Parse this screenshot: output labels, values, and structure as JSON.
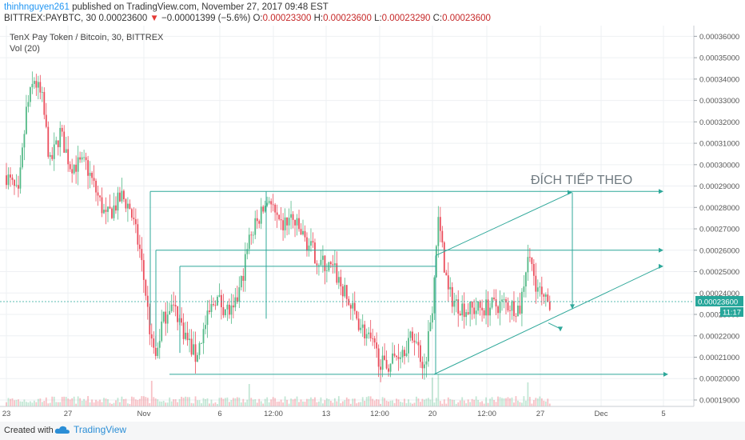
{
  "header": {
    "author": "thinhnguyen261",
    "published": "published on TradingView.com, November 27, 2017 09:48 EST",
    "symbol": "BITTREX:PAYBTC, 30",
    "last": "0.00023600",
    "change": "−0.00001399 (−5.6%)",
    "o_label": "O:",
    "o": "0.00023300",
    "h_label": "H:",
    "h": "0.00023600",
    "l_label": "L:",
    "l": "0.00023290",
    "c_label": "C:",
    "c": "0.00023600"
  },
  "legend": {
    "title": "TenX Pay Token / Bitcoin, 30, BITTREX",
    "volume": "Vol (20)"
  },
  "footer": {
    "created_with": "Created with",
    "brand": "TradingView"
  },
  "colors": {
    "up": "#53b987",
    "down": "#eb4d5c",
    "drawing": "#2fa89a",
    "price_badge": "#26a69a",
    "annotation": "#6f7a80",
    "grid": "#eef0f3"
  },
  "chart_data": {
    "type": "candlestick",
    "annotation": "ĐÍCH TIẾP THEO",
    "current_price_label": "0.00023600",
    "countdown": "11:17",
    "y_ticks": [
      "0.00036000",
      "0.00035000",
      "0.00034000",
      "0.00033000",
      "0.00032000",
      "0.00031000",
      "0.00030000",
      "0.00029000",
      "0.00028000",
      "0.00027000",
      "0.00026000",
      "0.00025000",
      "0.00024000",
      "0.00023000",
      "0.00022000",
      "0.00021000",
      "0.00020000",
      "0.00019000"
    ],
    "ylim": [
      0.000187,
      0.000365
    ],
    "x_ticks": [
      "23",
      "27",
      "Nov",
      "6",
      "12:00",
      "13",
      "12:00",
      "20",
      "12:00",
      "27",
      "Dec",
      "5"
    ],
    "anchors": [
      [
        0,
        0.000295
      ],
      [
        6,
        0.000285
      ],
      [
        10,
        0.000325
      ],
      [
        14,
        0.00034
      ],
      [
        18,
        0.00033
      ],
      [
        22,
        0.0003
      ],
      [
        27,
        0.000315
      ],
      [
        32,
        0.0003
      ],
      [
        40,
        0.0003
      ],
      [
        46,
        0.000285
      ],
      [
        50,
        0.000275
      ],
      [
        54,
        0.00028
      ],
      [
        58,
        0.000285
      ],
      [
        62,
        0.00028
      ],
      [
        67,
        0.00026
      ],
      [
        70,
        0.00024
      ],
      [
        73,
        0.000215
      ],
      [
        75,
        0.00021
      ],
      [
        78,
        0.000225
      ],
      [
        82,
        0.000235
      ],
      [
        86,
        0.00023
      ],
      [
        90,
        0.00022
      ],
      [
        95,
        0.00021
      ],
      [
        100,
        0.000225
      ],
      [
        105,
        0.000238
      ],
      [
        110,
        0.000233
      ],
      [
        114,
        0.00023
      ],
      [
        118,
        0.000245
      ],
      [
        122,
        0.000265
      ],
      [
        127,
        0.000275
      ],
      [
        132,
        0.000285
      ],
      [
        137,
        0.00027
      ],
      [
        143,
        0.000275
      ],
      [
        150,
        0.000265
      ],
      [
        157,
        0.000255
      ],
      [
        165,
        0.00025
      ],
      [
        172,
        0.000235
      ],
      [
        178,
        0.000225
      ],
      [
        184,
        0.000215
      ],
      [
        190,
        0.000205
      ],
      [
        195,
        0.00021
      ],
      [
        200,
        0.000215
      ],
      [
        205,
        0.00022
      ],
      [
        210,
        0.000205
      ],
      [
        214,
        0.000235
      ],
      [
        217,
        0.000275
      ],
      [
        219,
        0.00026
      ],
      [
        222,
        0.00024
      ],
      [
        226,
        0.000235
      ],
      [
        232,
        0.000232
      ],
      [
        240,
        0.000233
      ],
      [
        250,
        0.000235
      ],
      [
        258,
        0.000233
      ],
      [
        262,
        0.000258
      ],
      [
        266,
        0.000245
      ],
      [
        270,
        0.000235
      ],
      [
        273,
        0.000236
      ]
    ],
    "volume_spikes": [
      [
        73,
        0.8
      ],
      [
        122,
        0.7
      ],
      [
        214,
        0.9
      ],
      [
        217,
        1.0
      ],
      [
        262,
        0.75
      ]
    ]
  }
}
